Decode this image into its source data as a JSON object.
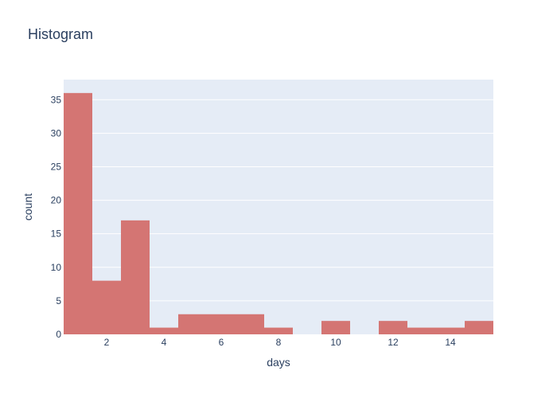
{
  "chart_data": {
    "type": "bar",
    "title": "Histogram",
    "xlabel": "days",
    "ylabel": "count",
    "bins": [
      {
        "start": 0.5,
        "end": 1.5,
        "count": 36
      },
      {
        "start": 1.5,
        "end": 2.5,
        "count": 8
      },
      {
        "start": 2.5,
        "end": 3.5,
        "count": 17
      },
      {
        "start": 3.5,
        "end": 4.5,
        "count": 1
      },
      {
        "start": 4.5,
        "end": 5.5,
        "count": 3
      },
      {
        "start": 5.5,
        "end": 6.5,
        "count": 3
      },
      {
        "start": 6.5,
        "end": 7.5,
        "count": 3
      },
      {
        "start": 7.5,
        "end": 8.5,
        "count": 1
      },
      {
        "start": 8.5,
        "end": 9.5,
        "count": 0
      },
      {
        "start": 9.5,
        "end": 10.5,
        "count": 2
      },
      {
        "start": 10.5,
        "end": 11.5,
        "count": 0
      },
      {
        "start": 11.5,
        "end": 12.5,
        "count": 2
      },
      {
        "start": 12.5,
        "end": 13.5,
        "count": 1
      },
      {
        "start": 13.5,
        "end": 14.5,
        "count": 1
      },
      {
        "start": 14.5,
        "end": 15.5,
        "count": 2
      }
    ],
    "xlim": [
      0.5,
      15.5
    ],
    "ylim": [
      0,
      38
    ],
    "xticks": [
      2,
      4,
      6,
      8,
      10,
      12,
      14
    ],
    "yticks": [
      0,
      5,
      10,
      15,
      20,
      25,
      30,
      35
    ],
    "grid": true,
    "colors": {
      "bar": "#d47573",
      "plot_background": "#e5ecf6",
      "grid": "#ffffff",
      "text": "#2a3f5f",
      "tick_text": "#2a3f5f"
    }
  }
}
